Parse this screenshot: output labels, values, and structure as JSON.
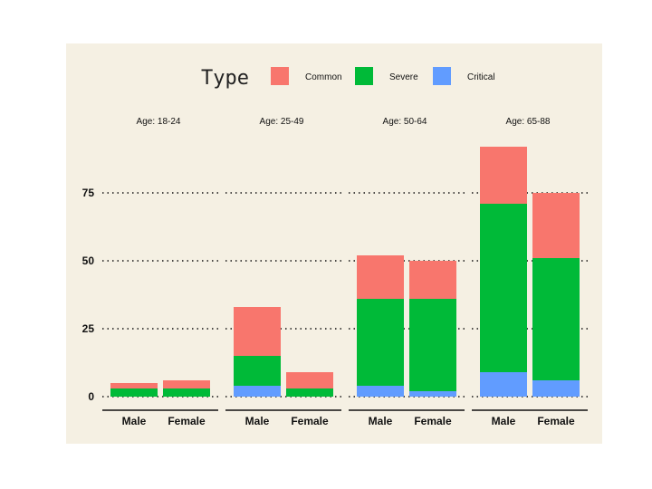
{
  "chart_data": {
    "type": "bar",
    "stacked": true,
    "legend": {
      "title": "Type",
      "placement": "top",
      "entries": [
        {
          "name": "Common",
          "color": "#f8766d"
        },
        {
          "name": "Severe",
          "color": "#00ba38"
        },
        {
          "name": "Critical",
          "color": "#619cff"
        }
      ]
    },
    "categories": [
      "Male",
      "Female"
    ],
    "yticks": [
      0,
      25,
      50,
      75
    ],
    "ylim": [
      0,
      92
    ],
    "grid": "horizontal dotted",
    "facets": [
      {
        "label": "Age: 18-24",
        "bars": [
          {
            "category": "Male",
            "Critical": 0,
            "Severe": 3,
            "Common": 2
          },
          {
            "category": "Female",
            "Critical": 0,
            "Severe": 3,
            "Common": 3
          }
        ]
      },
      {
        "label": "Age: 25-49",
        "bars": [
          {
            "category": "Male",
            "Critical": 4,
            "Severe": 11,
            "Common": 18
          },
          {
            "category": "Female",
            "Critical": 0,
            "Severe": 3,
            "Common": 6
          }
        ]
      },
      {
        "label": "Age: 50-64",
        "bars": [
          {
            "category": "Male",
            "Critical": 4,
            "Severe": 32,
            "Common": 16
          },
          {
            "category": "Female",
            "Critical": 2,
            "Severe": 34,
            "Common": 14
          }
        ]
      },
      {
        "label": "Age: 65-88",
        "bars": [
          {
            "category": "Male",
            "Critical": 9,
            "Severe": 62,
            "Common": 21
          },
          {
            "category": "Female",
            "Critical": 6,
            "Severe": 45,
            "Common": 24
          }
        ]
      }
    ]
  }
}
